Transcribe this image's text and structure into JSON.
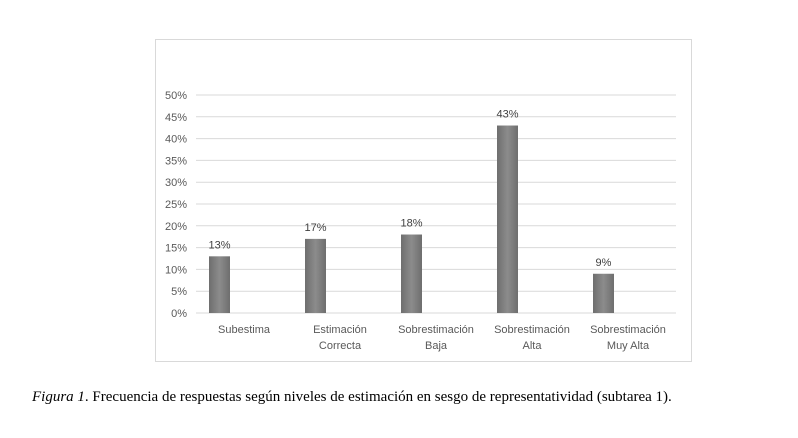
{
  "chart_data": {
    "type": "bar",
    "categories": [
      [
        "Subestima"
      ],
      [
        "Estimación",
        "Correcta"
      ],
      [
        "Sobrestimación",
        "Baja"
      ],
      [
        "Sobrestimación",
        "Alta"
      ],
      [
        "Sobrestimación",
        "Muy Alta"
      ]
    ],
    "values": [
      13,
      17,
      18,
      43,
      9
    ],
    "data_labels": [
      "13%",
      "17%",
      "18%",
      "43%",
      "9%"
    ],
    "yticks": [
      "0%",
      "5%",
      "10%",
      "15%",
      "20%",
      "25%",
      "30%",
      "35%",
      "40%",
      "45%",
      "50%"
    ],
    "ylim": [
      0,
      50
    ],
    "grid": true,
    "bar_color": "#7f7f7f",
    "grid_color": "#d9d9d9"
  },
  "caption": {
    "figure_label": "Figura 1",
    "text": ". Frecuencia de respuestas según niveles de estimación en sesgo de representatividad (subtarea 1)."
  }
}
